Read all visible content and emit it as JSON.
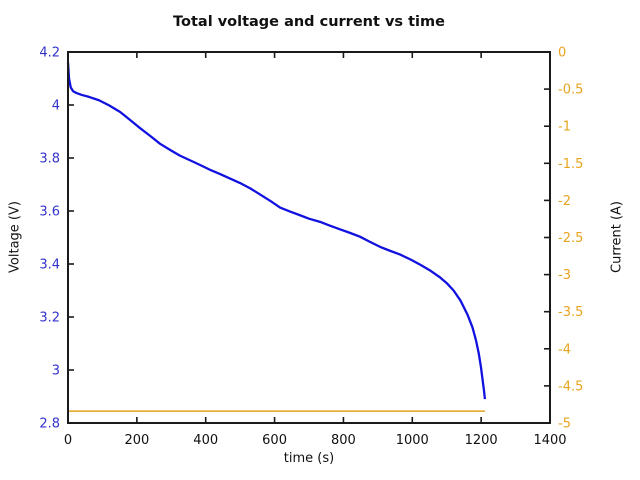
{
  "figure": {
    "background_color": "#ffffff",
    "frame_color": "#1a1a1a"
  },
  "chart_data": {
    "type": "line",
    "title": "Total voltage and current vs time",
    "xlabel": "time (s)",
    "ylabel_left": "Voltage (V)",
    "ylabel_right": "Current (A)",
    "grid": false,
    "legend": "none",
    "x_axis": {
      "min": 0,
      "max": 1400,
      "ticks": [
        0,
        200,
        400,
        600,
        800,
        1000,
        1200,
        1400
      ],
      "tick_labels": [
        "0",
        "200",
        "400",
        "600",
        "800",
        "1000",
        "1200",
        "1400"
      ],
      "label_color": "#111111"
    },
    "y_axis_left": {
      "min": 2.8,
      "max": 4.2,
      "ticks": [
        2.8,
        3.0,
        3.2,
        3.4,
        3.6,
        3.8,
        4.0,
        4.2
      ],
      "tick_labels": [
        "2.8",
        "3",
        "3.2",
        "3.4",
        "3.6",
        "3.8",
        "4",
        "4.2"
      ],
      "label_color": "#3333cc"
    },
    "y_axis_right": {
      "min": -5,
      "max": 0,
      "ticks": [
        -5,
        -4.5,
        -4,
        -3.5,
        -3,
        -2.5,
        -2,
        -1.5,
        -1,
        -0.5,
        0
      ],
      "tick_labels": [
        "-5",
        "-4.5",
        "-4",
        "-3.5",
        "-3",
        "-2.5",
        "-2",
        "-1.5",
        "-1",
        "-0.5",
        "0"
      ],
      "label_color": "#e8a41f"
    },
    "series": [
      {
        "name": "total-current",
        "axis": "right",
        "color": "#e2a01b",
        "line_width": 1.5,
        "x": [
          0,
          1211
        ],
        "y": [
          -4.84,
          -4.84
        ]
      },
      {
        "name": "total-voltage",
        "axis": "left",
        "color": "#1212e0",
        "line_width": 2.3,
        "x": [
          0,
          3,
          8,
          15,
          25,
          40,
          60,
          90,
          120,
          151,
          180,
          209,
          240,
          267,
          300,
          325,
          355,
          383,
          410,
          441,
          470,
          499,
          530,
          557,
          590,
          616,
          645,
          674,
          700,
          732,
          760,
          790,
          820,
          848,
          875,
          906,
          935,
          964,
          995,
          1022,
          1050,
          1080,
          1100,
          1120,
          1140,
          1160,
          1175,
          1185,
          1193,
          1199,
          1204,
          1208,
          1211
        ],
        "y": [
          4.16,
          4.1,
          4.066,
          4.052,
          4.045,
          4.038,
          4.031,
          4.018,
          3.998,
          3.974,
          3.944,
          3.913,
          3.882,
          3.854,
          3.828,
          3.809,
          3.791,
          3.774,
          3.757,
          3.74,
          3.723,
          3.706,
          3.685,
          3.663,
          3.636,
          3.613,
          3.598,
          3.584,
          3.571,
          3.559,
          3.545,
          3.531,
          3.517,
          3.503,
          3.485,
          3.465,
          3.45,
          3.436,
          3.417,
          3.398,
          3.377,
          3.35,
          3.328,
          3.3,
          3.262,
          3.21,
          3.16,
          3.112,
          3.063,
          3.015,
          2.965,
          2.925,
          2.89
        ]
      }
    ]
  }
}
